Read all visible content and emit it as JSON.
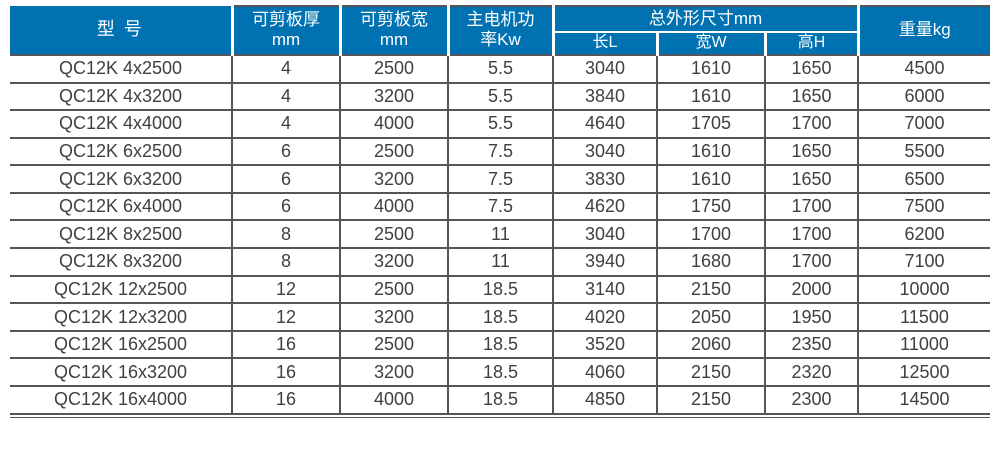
{
  "colors": {
    "header_bg": "#0072b1",
    "header_text": "#ffffff",
    "body_text": "#3e4044",
    "grid_line": "#54555a",
    "page_bg": "#ffffff"
  },
  "table": {
    "header": {
      "model": "型 号",
      "thickness_l1": "可剪板厚",
      "thickness_l2": "mm",
      "plate_width_l1": "可剪板宽",
      "plate_width_l2": "mm",
      "power_l1": "主电机功",
      "power_l2": "率Kw",
      "dimensions_group": "总外形尺寸mm",
      "length": "长L",
      "width": "宽W",
      "height": "高H",
      "weight": "重量kg"
    },
    "rows": [
      [
        "QC12K 4x2500",
        "4",
        "2500",
        "5.5",
        "3040",
        "1610",
        "1650",
        "4500"
      ],
      [
        "QC12K 4x3200",
        "4",
        "3200",
        "5.5",
        "3840",
        "1610",
        "1650",
        "6000"
      ],
      [
        "QC12K 4x4000",
        "4",
        "4000",
        "5.5",
        "4640",
        "1705",
        "1700",
        "7000"
      ],
      [
        "QC12K 6x2500",
        "6",
        "2500",
        "7.5",
        "3040",
        "1610",
        "1650",
        "5500"
      ],
      [
        "QC12K 6x3200",
        "6",
        "3200",
        "7.5",
        "3830",
        "1610",
        "1650",
        "6500"
      ],
      [
        "QC12K 6x4000",
        "6",
        "4000",
        "7.5",
        "4620",
        "1750",
        "1700",
        "7500"
      ],
      [
        "QC12K 8x2500",
        "8",
        "2500",
        "11",
        "3040",
        "1700",
        "1700",
        "6200"
      ],
      [
        "QC12K 8x3200",
        "8",
        "3200",
        "11",
        "3940",
        "1680",
        "1700",
        "7100"
      ],
      [
        "QC12K 12x2500",
        "12",
        "2500",
        "18.5",
        "3140",
        "2150",
        "2000",
        "10000"
      ],
      [
        "QC12K 12x3200",
        "12",
        "3200",
        "18.5",
        "4020",
        "2050",
        "1950",
        "11500"
      ],
      [
        "QC12K 16x2500",
        "16",
        "2500",
        "18.5",
        "3520",
        "2060",
        "2350",
        "11000"
      ],
      [
        "QC12K 16x3200",
        "16",
        "3200",
        "18.5",
        "4060",
        "2150",
        "2320",
        "12500"
      ],
      [
        "QC12K 16x4000",
        "16",
        "4000",
        "18.5",
        "4850",
        "2150",
        "2300",
        "14500"
      ]
    ]
  }
}
